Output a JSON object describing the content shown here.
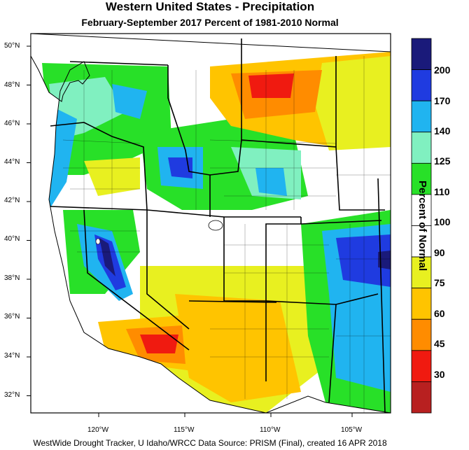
{
  "title": "Western United States - Precipitation",
  "subtitle": "February-September 2017  Percent of 1981-2010 Normal",
  "source": "WestWide Drought Tracker, U Idaho/WRCC Data Source: PRISM (Final), created 16 APR 2018",
  "colorbar": {
    "title": "Percent of Normal",
    "ticks": [
      "200",
      "170",
      "140",
      "125",
      "110",
      "100",
      "90",
      "75",
      "60",
      "45",
      "30"
    ],
    "colors": [
      "#1a1a7a",
      "#1f3be0",
      "#20b4f0",
      "#80f0c0",
      "#28e028",
      "#ffffff",
      "#ffffff",
      "#e8f020",
      "#ffc400",
      "#ff8c00",
      "#f01a10",
      "#b82020"
    ]
  },
  "axes": {
    "lat_labels": [
      "50°N",
      "48°N",
      "46°N",
      "44°N",
      "42°N",
      "40°N",
      "38°N",
      "36°N",
      "34°N",
      "32°N"
    ],
    "lon_labels": [
      "120°W",
      "115°W",
      "110°W",
      "105°W"
    ]
  },
  "map_colors": {
    "ocean": "#ffffff",
    "green": "#28e028",
    "mint": "#80f0c0",
    "lightblue": "#20b4f0",
    "blue": "#1f3be0",
    "navy": "#1a1a7a",
    "yellow": "#e8f020",
    "orange": "#ffc400",
    "darkorange": "#ff8c00",
    "red": "#f01a10",
    "white": "#ffffff"
  }
}
